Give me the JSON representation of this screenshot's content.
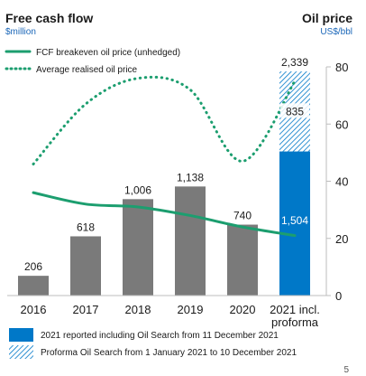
{
  "left_title": "Free cash flow",
  "left_unit": "$million",
  "right_title": "Oil price",
  "right_unit": "US$/bbl",
  "page_number": "5",
  "colors": {
    "bar_gray": "#7a7a7a",
    "bar_blue": "#0078c8",
    "hatch_line": "#0078c8",
    "green": "#1c9e6f",
    "unit_blue": "#1a66b8",
    "text": "#1a1a1a",
    "axis": "#bdbdbd"
  },
  "chart_data": {
    "type": "bar",
    "categories": [
      "2016",
      "2017",
      "2018",
      "2019",
      "2020",
      "2021 incl. proforma"
    ],
    "x_labels": [
      [
        "2016"
      ],
      [
        "2017"
      ],
      [
        "2018"
      ],
      [
        "2019"
      ],
      [
        "2020"
      ],
      [
        "2021 incl.",
        "proforma"
      ]
    ],
    "fcf": {
      "values": [
        206,
        618,
        1006,
        1138,
        740,
        2339
      ],
      "labels": [
        "206",
        "618",
        "1,006",
        "1,138",
        "740",
        "2,339"
      ]
    },
    "stack_2021": {
      "reported": 1504,
      "reported_label": "1,504",
      "proforma": 835,
      "proforma_label": "835"
    },
    "right_axis": {
      "ylim": [
        0,
        80
      ],
      "ticks": [
        0,
        20,
        40,
        60,
        80
      ]
    },
    "series": [
      {
        "name": "FCF breakeven oil price (unhedged)",
        "style": "solid",
        "values": [
          36,
          32,
          31,
          28,
          24,
          21
        ]
      },
      {
        "name": "Average realised oil price",
        "style": "dotted",
        "values": [
          46,
          67,
          76,
          72,
          47,
          75
        ]
      }
    ],
    "legend_top": [
      {
        "label": "FCF breakeven oil price (unhedged)",
        "style": "solid"
      },
      {
        "label": "Average realised oil price",
        "style": "dotted"
      }
    ],
    "legend_bottom": [
      {
        "label": "2021 reported including Oil Search from 11 December 2021",
        "swatch": "solid"
      },
      {
        "label": "Proforma Oil Search from 1 January 2021 to 10 December 2021",
        "swatch": "hatched"
      }
    ]
  }
}
